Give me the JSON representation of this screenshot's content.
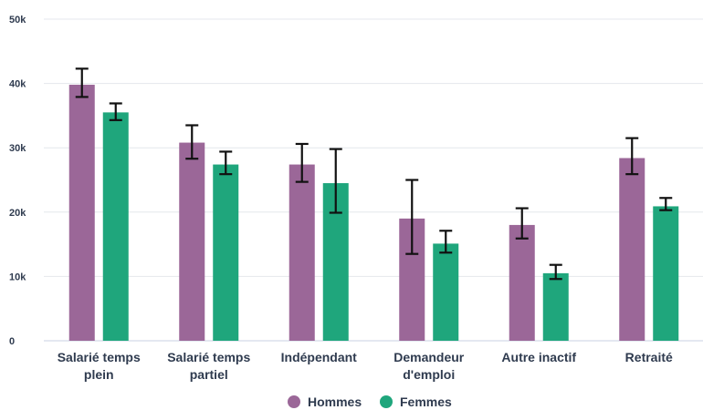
{
  "chart_data": {
    "type": "bar",
    "categories": [
      [
        "Salarié temps",
        "plein"
      ],
      [
        "Salarié temps",
        "partiel"
      ],
      [
        "Indépendant"
      ],
      [
        "Demandeur",
        "d'emploi"
      ],
      [
        "Autre inactif"
      ],
      [
        "Retraité"
      ]
    ],
    "series": [
      {
        "name": "Hommes",
        "color": "#9b6798",
        "values": [
          39800,
          30800,
          27400,
          19000,
          18000,
          28400
        ],
        "error_low": [
          37900,
          28300,
          24700,
          13500,
          15900,
          25900
        ],
        "error_high": [
          42300,
          33500,
          30600,
          25000,
          20600,
          31500
        ]
      },
      {
        "name": "Femmes",
        "color": "#1fa67c",
        "values": [
          35500,
          27400,
          24500,
          15100,
          10500,
          20900
        ],
        "error_low": [
          34300,
          25900,
          19900,
          13700,
          9600,
          20300
        ],
        "error_high": [
          36900,
          29400,
          29800,
          17100,
          11800,
          22200
        ]
      }
    ],
    "y_ticks": [
      "0",
      "10k",
      "20k",
      "30k",
      "40k",
      "50k"
    ],
    "ylim": [
      0,
      50000
    ],
    "grid": true,
    "legend_position": "bottom-center",
    "title": "",
    "xlabel": "",
    "ylabel": ""
  }
}
